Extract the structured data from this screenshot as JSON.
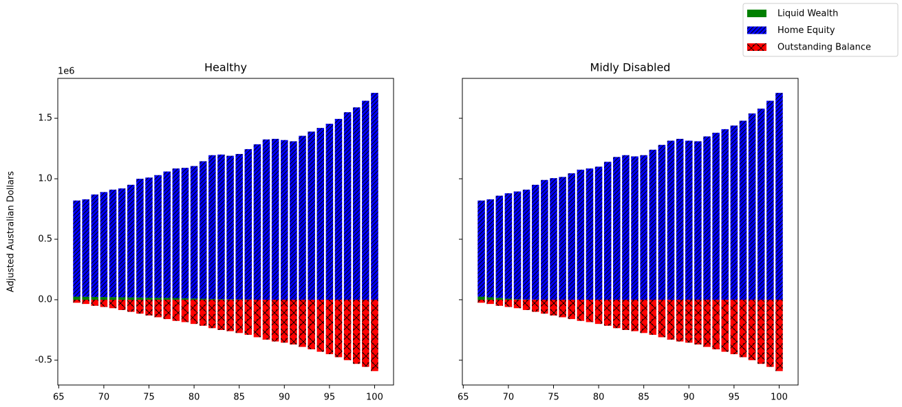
{
  "chart_data": [
    {
      "type": "bar",
      "title": "Healthy",
      "ylabel": "Adjusted Australian Dollars",
      "offset_label": "1e6",
      "show_yticklabels": true,
      "x": [
        67,
        68,
        69,
        70,
        71,
        72,
        73,
        74,
        75,
        76,
        77,
        78,
        79,
        80,
        81,
        82,
        83,
        84,
        85,
        86,
        87,
        88,
        89,
        90,
        91,
        92,
        93,
        94,
        95,
        96,
        97,
        98,
        99,
        100
      ],
      "series": [
        {
          "name": "Liquid Wealth",
          "color": "#008000",
          "values": [
            0.025,
            0.024,
            0.023,
            0.022,
            0.021,
            0.02,
            0.019,
            0.018,
            0.017,
            0.016,
            0.015,
            0.014,
            0.012,
            0.01,
            0.008,
            0.006,
            0.005,
            0.004,
            0.003,
            0.002,
            0,
            0,
            0,
            0,
            0,
            0,
            0,
            0,
            0,
            0,
            0,
            0,
            0,
            0
          ]
        },
        {
          "name": "Home Equity",
          "color": "#0000ff",
          "values": [
            0.795,
            0.806,
            0.847,
            0.868,
            0.889,
            0.9,
            0.931,
            0.982,
            0.993,
            1.014,
            1.045,
            1.071,
            1.078,
            1.095,
            1.137,
            1.189,
            1.195,
            1.186,
            1.202,
            1.243,
            1.285,
            1.325,
            1.33,
            1.32,
            1.31,
            1.355,
            1.39,
            1.42,
            1.455,
            1.495,
            1.55,
            1.59,
            1.645,
            1.71
          ]
        },
        {
          "name": "Outstanding Balance",
          "color": "#ff0000",
          "values": [
            -0.025,
            -0.035,
            -0.05,
            -0.06,
            -0.07,
            -0.085,
            -0.1,
            -0.115,
            -0.13,
            -0.145,
            -0.16,
            -0.175,
            -0.185,
            -0.2,
            -0.215,
            -0.235,
            -0.25,
            -0.26,
            -0.275,
            -0.29,
            -0.31,
            -0.33,
            -0.345,
            -0.355,
            -0.37,
            -0.39,
            -0.41,
            -0.43,
            -0.45,
            -0.475,
            -0.5,
            -0.53,
            -0.555,
            -0.59
          ]
        }
      ],
      "xlim": [
        64.9,
        102.1
      ],
      "ylim": [
        -0.705,
        1.83
      ],
      "xticks": [
        65,
        70,
        75,
        80,
        85,
        90,
        95,
        100
      ],
      "yticks": [
        -0.5,
        {
          "value": 0,
          "label": "0.0"
        },
        0.5,
        {
          "value": 1,
          "label": "1.0"
        },
        1.5
      ]
    },
    {
      "type": "bar",
      "title": "Midly Disabled",
      "show_yticklabels": false,
      "x": [
        67,
        68,
        69,
        70,
        71,
        72,
        73,
        74,
        75,
        76,
        77,
        78,
        79,
        80,
        81,
        82,
        83,
        84,
        85,
        86,
        87,
        88,
        89,
        90,
        91,
        92,
        93,
        94,
        95,
        96,
        97,
        98,
        99,
        100
      ],
      "series": [
        {
          "name": "Liquid Wealth",
          "color": "#008000",
          "values": [
            0.025,
            0.02,
            0.015,
            0.008,
            0.004,
            0.002,
            0.001,
            0,
            0,
            0,
            0,
            0,
            0,
            0,
            0,
            0,
            0,
            0,
            0,
            0,
            0,
            0,
            0,
            0,
            0,
            0,
            0,
            0,
            0,
            0,
            0,
            0,
            0,
            0
          ]
        },
        {
          "name": "Home Equity",
          "color": "#0000ff",
          "values": [
            0.795,
            0.81,
            0.845,
            0.872,
            0.891,
            0.908,
            0.949,
            0.99,
            1.005,
            1.015,
            1.045,
            1.075,
            1.085,
            1.1,
            1.14,
            1.18,
            1.195,
            1.185,
            1.195,
            1.24,
            1.28,
            1.315,
            1.33,
            1.315,
            1.31,
            1.35,
            1.38,
            1.41,
            1.44,
            1.48,
            1.54,
            1.58,
            1.645,
            1.71
          ]
        },
        {
          "name": "Outstanding Balance",
          "color": "#ff0000",
          "values": [
            -0.025,
            -0.035,
            -0.05,
            -0.06,
            -0.07,
            -0.085,
            -0.1,
            -0.115,
            -0.13,
            -0.145,
            -0.16,
            -0.175,
            -0.185,
            -0.2,
            -0.215,
            -0.235,
            -0.25,
            -0.26,
            -0.275,
            -0.29,
            -0.31,
            -0.33,
            -0.345,
            -0.355,
            -0.37,
            -0.39,
            -0.41,
            -0.43,
            -0.45,
            -0.475,
            -0.5,
            -0.53,
            -0.555,
            -0.59
          ]
        }
      ],
      "xlim": [
        64.9,
        102.1
      ],
      "ylim": [
        -0.705,
        1.83
      ],
      "xticks": [
        65,
        70,
        75,
        80,
        85,
        90,
        95,
        100
      ],
      "yticks": [
        -0.5,
        {
          "value": 0,
          "label": "0.0"
        },
        0.5,
        {
          "value": 1,
          "label": "1.0"
        },
        1.5
      ]
    }
  ]
}
